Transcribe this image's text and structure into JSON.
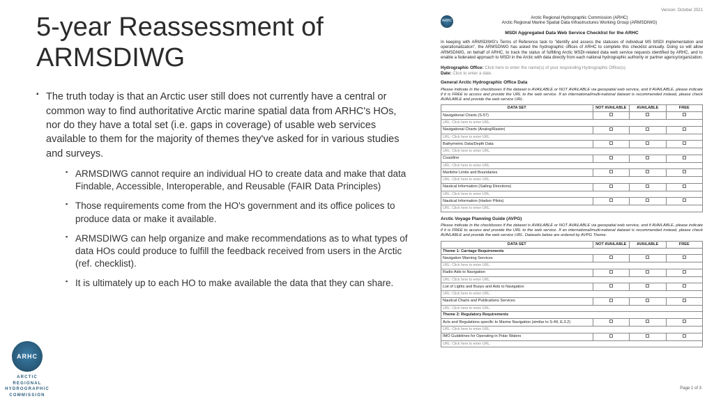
{
  "slide": {
    "title": "5-year Reassessment of ARMSDIWG",
    "main_bullet": "The truth today is that an Arctic user still does not currently have a central or common way to find authoritative Arctic marine spatial data from ARHC's HOs, nor do they have a total set (i.e. gaps in coverage) of usable web services available to them for the majority of themes they've asked for in various studies and surveys.",
    "sub_bullets": [
      "ARMSDIWG cannot require an individual HO to create data and make that data Findable, Accessible, Interoperable, and Reusable (FAIR Data Principles)",
      "Those requirements come from the HO's government and its office polices to produce data or make it available.",
      "ARMSDIWG can help organize and make recommendations as to what types of data HOs could produce to fulfill the feedback received from users in the Arctic (ref. checklist).",
      "It is ultimately up to each HO to make available the data that they can share."
    ]
  },
  "logo": {
    "abbr": "ARHC",
    "line1": "ARCTIC REGIONAL",
    "line2": "HYDROGRAPHIC",
    "line3": "COMMISSION"
  },
  "doc": {
    "version": "Version: October 2021",
    "org1": "Arctic Regional Hydrographic Commission (ARHC)",
    "org2": "Arctic Regional Marine Spatial Data Infrastructures Working Group (ARMSDIWG)",
    "title": "MSDI Aggregated Data Web Service Checklist for the ARHC",
    "intro": "In keeping with ARMSDIWG's Terms of Reference task to \"identify and assess the statuses of individual MS MSDI implementation and operationalization\", the ARMSDIWG has asked the hydrographic offices of ARHC to complete this checklist annually. Doing so will allow ARMSDIWG, on behalf of ARHC, to track the status of fulfilling Arctic MSDI-related data web service requests identified by ARHC, and to enable a federated approach to MSDI in the Arctic with data directly from each national hydrographic authority or partner agency/organization.",
    "ho_label": "Hydrographic Office:",
    "ho_placeholder": "Click here to enter the name(s) of your responding Hydrographic Office(s).",
    "date_label": "Date:",
    "date_placeholder": "Click to enter a date.",
    "section1_title": "General Arctic Hydrographic Office Data",
    "instr1": "Please indicate in the checkboxes if the dataset is AVAILABLE or NOT AVAILABLE via geospatial web service, and if AVAILABLE, please indicate if it is FREE to access and provide the URL to the web service. If an international/multi-national dataset is recommended instead, please check AVAILABLE and provide the web service URL.",
    "headers": {
      "ds": "DATA SET",
      "na": "NOT AVAILABLE",
      "av": "AVAILABLE",
      "fr": "FREE"
    },
    "url_text": "URL:   Click here to enter URL.",
    "table1_rows": [
      "Navigational Charts (S-57)",
      "Navigational Charts (Analog/Raster)",
      "Bathymetric Data/Depth Data",
      "Coastline",
      "Maritime Limits and Boundaries",
      "Nautical Information (Sailing Directions)",
      "Nautical Information (Harbor Pilots)"
    ],
    "section2_title": "Arctic Voyage Planning Guide (AVPG)",
    "instr2": "Please indicate in the checkboxes if the dataset is AVAILABLE or NOT AVAILABLE via geospatial web service, and if AVAILABLE, please indicate if it is FREE to access and provide the URL to the web service. If an international/multi-national dataset is recommended instead, please check AVAILABLE and provide the web service URL. Datasets below are ordered by AVPG Theme.",
    "table2": [
      {
        "type": "theme",
        "text": "Theme 1: Carriage Requirements"
      },
      {
        "type": "row",
        "text": "Navigation Warning Services"
      },
      {
        "type": "row",
        "text": "Radio Aids to Navigation"
      },
      {
        "type": "row",
        "text": "List of Lights and Buoys and Aids to Navigation"
      },
      {
        "type": "row",
        "text": "Nautical Charts and Publications Services"
      },
      {
        "type": "theme",
        "text": "Theme 2: Regulatory Requirements"
      },
      {
        "type": "row",
        "text": "Acts and Regulations specific to Marine Navigation (similar to S-49, E.3.2)"
      },
      {
        "type": "row",
        "text": "IMO Guidelines for Operating in Polar Waters"
      }
    ],
    "page": "Page 1 of 3"
  },
  "colors": {
    "text": "#333333",
    "title": "#2b2b2b",
    "logo_dark": "#1c3d52",
    "logo_mid": "#2a5d7d",
    "border": "#888888"
  }
}
